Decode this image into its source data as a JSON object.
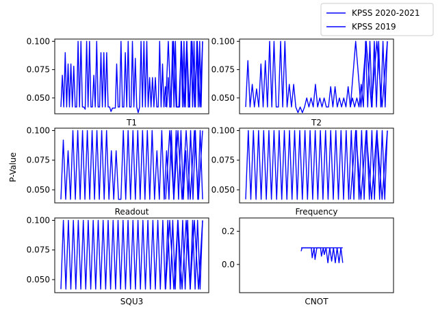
{
  "figure": {
    "ylabel": "P-Value",
    "line_color": "#0000ff",
    "legend": {
      "placement": "top-right (outside plots)",
      "entries": [
        "KPSS 2020-2021",
        "KPSS 2019"
      ]
    }
  },
  "chart_data": [
    {
      "type": "line",
      "name": "T1",
      "xlabel": "T1",
      "ylim": [
        0.036,
        0.102
      ],
      "yticks": [
        0.05,
        0.075,
        0.1
      ],
      "ytick_labels": [
        "0.050",
        "0.075",
        "0.100"
      ],
      "grid": false,
      "series": [
        {
          "name": "KPSS 2020-2021",
          "values": [
            0.042,
            0.07,
            0.042,
            0.09,
            0.042,
            0.08,
            0.042,
            0.08,
            0.042,
            0.078,
            0.042,
            0.042,
            0.1,
            0.042,
            0.1,
            0.042,
            0.042,
            0.04,
            0.1,
            0.042,
            0.1,
            0.042,
            0.042,
            0.07,
            0.042,
            0.1,
            0.042,
            0.042,
            0.09,
            0.042,
            0.09,
            0.042,
            0.09,
            0.042,
            0.042,
            0.038,
            0.041,
            0.041,
            0.041,
            0.08,
            0.042,
            0.042,
            0.1,
            0.042,
            0.042,
            0.09,
            0.042,
            0.1,
            0.042,
            0.042,
            0.1,
            0.042,
            0.085,
            0.042,
            0.037,
            0.042,
            0.1,
            0.042,
            0.1,
            0.042,
            0.1,
            0.042,
            0.068,
            0.042,
            0.068,
            0.042,
            0.068,
            0.042,
            0.042,
            0.1,
            0.042,
            0.08,
            0.042,
            0.06,
            0.042,
            0.068,
            0.042,
            0.042,
            0.1,
            0.042,
            0.1,
            0.042,
            0.042,
            0.042,
            0.1,
            0.042,
            0.1,
            0.042,
            0.1,
            0.042,
            0.042,
            0.1,
            0.042,
            0.1,
            0.042,
            0.1,
            0.042,
            0.1,
            0.042,
            0.1
          ]
        },
        {
          "name": "KPSS 2019",
          "values": [
            0.042,
            0.1,
            0.042,
            0.1,
            0.042,
            0.042,
            0.1,
            0.042,
            0.1,
            0.042,
            0.1,
            0.042,
            0.1,
            0.042,
            0.1
          ]
        }
      ]
    },
    {
      "type": "line",
      "name": "T2",
      "xlabel": "T2",
      "ylim": [
        0.036,
        0.102
      ],
      "yticks": [
        0.05,
        0.075,
        0.1
      ],
      "ytick_labels": [
        "0.050",
        "0.075",
        "0.100"
      ],
      "grid": false,
      "series": [
        {
          "name": "KPSS 2020-2021",
          "values": [
            0.042,
            0.083,
            0.042,
            0.062,
            0.042,
            0.058,
            0.042,
            0.08,
            0.042,
            0.083,
            0.042,
            0.1,
            0.042,
            0.1,
            0.042,
            0.042,
            0.1,
            0.042,
            0.1,
            0.042,
            0.062,
            0.042,
            0.062,
            0.042,
            0.037,
            0.042,
            0.037,
            0.042,
            0.05,
            0.042,
            0.05,
            0.042,
            0.062,
            0.042,
            0.05,
            0.042,
            0.05,
            0.042,
            0.042,
            0.06,
            0.042,
            0.06,
            0.042,
            0.05,
            0.042,
            0.05,
            0.042,
            0.06,
            0.042,
            0.05,
            0.042,
            0.05,
            0.042,
            0.062,
            0.042,
            0.1,
            0.042,
            0.1,
            0.042,
            0.1,
            0.042,
            0.1,
            0.042,
            0.1,
            0.042,
            0.1
          ]
        },
        {
          "name": "KPSS 2019",
          "values": [
            0.042,
            0.1,
            0.042,
            0.1,
            0.042,
            0.1,
            0.042,
            0.1
          ]
        }
      ]
    },
    {
      "type": "line",
      "name": "Readout",
      "xlabel": "Readout",
      "ylim": [
        0.039,
        0.102
      ],
      "yticks": [
        0.05,
        0.075,
        0.1
      ],
      "ytick_labels": [
        "0.050",
        "0.075",
        "0.100"
      ],
      "grid": false,
      "series": [
        {
          "name": "KPSS 2020-2021",
          "values": [
            0.042,
            0.092,
            0.042,
            0.083,
            0.042,
            0.1,
            0.042,
            0.1,
            0.042,
            0.1,
            0.042,
            0.1,
            0.042,
            0.1,
            0.042,
            0.1,
            0.042,
            0.1,
            0.042,
            0.1,
            0.042,
            0.083,
            0.042,
            0.083,
            0.042,
            0.042,
            0.1,
            0.042,
            0.1,
            0.042,
            0.1,
            0.042,
            0.1,
            0.042,
            0.1,
            0.042,
            0.1,
            0.042,
            0.1,
            0.042,
            0.083,
            0.042,
            0.1,
            0.042,
            0.083,
            0.042,
            0.1,
            0.042,
            0.1,
            0.042,
            0.1,
            0.042,
            0.083,
            0.042,
            0.1,
            0.042,
            0.1,
            0.042,
            0.1,
            0.042
          ]
        },
        {
          "name": "KPSS 2019",
          "values": [
            0.042,
            0.1,
            0.042,
            0.1,
            0.042,
            0.1,
            0.042,
            0.1,
            0.042,
            0.1
          ]
        }
      ]
    },
    {
      "type": "line",
      "name": "Frequency",
      "xlabel": "Frequency",
      "ylim": [
        0.039,
        0.102
      ],
      "yticks": [
        0.05,
        0.075,
        0.1
      ],
      "ytick_labels": [
        "0.050",
        "0.075",
        "0.100"
      ],
      "grid": false,
      "series": [
        {
          "name": "KPSS 2020-2021",
          "values": [
            0.042,
            0.1,
            0.042,
            0.1,
            0.042,
            0.1,
            0.042,
            0.1,
            0.042,
            0.1,
            0.042,
            0.1,
            0.042,
            0.1,
            0.042,
            0.1,
            0.042,
            0.1,
            0.042,
            0.1,
            0.042,
            0.1,
            0.042,
            0.1,
            0.042,
            0.1,
            0.042,
            0.1,
            0.042,
            0.1,
            0.042,
            0.1,
            0.042,
            0.1,
            0.042,
            0.1,
            0.042,
            0.1,
            0.042,
            0.1,
            0.042,
            0.1,
            0.042,
            0.1,
            0.042,
            0.1,
            0.042,
            0.1,
            0.042,
            0.1,
            0.042,
            0.1,
            0.042,
            0.1,
            0.042,
            0.1
          ]
        },
        {
          "name": "KPSS 2019",
          "values": [
            0.042,
            0.1,
            0.042,
            0.1,
            0.042,
            0.1,
            0.042,
            0.1
          ]
        }
      ]
    },
    {
      "type": "line",
      "name": "SQU3",
      "xlabel": "SQU3",
      "ylim": [
        0.039,
        0.102
      ],
      "yticks": [
        0.05,
        0.075,
        0.1
      ],
      "ytick_labels": [
        "0.050",
        "0.075",
        "0.100"
      ],
      "grid": false,
      "series": [
        {
          "name": "KPSS 2020-2021",
          "values": [
            0.042,
            0.1,
            0.042,
            0.1,
            0.042,
            0.1,
            0.042,
            0.1,
            0.042,
            0.1,
            0.042,
            0.1,
            0.042,
            0.1,
            0.042,
            0.1,
            0.042,
            0.1,
            0.042,
            0.1,
            0.042,
            0.1,
            0.042,
            0.1,
            0.042,
            0.1,
            0.042,
            0.1,
            0.042,
            0.1,
            0.042,
            0.1,
            0.042,
            0.1,
            0.042,
            0.1,
            0.042,
            0.1,
            0.042,
            0.1,
            0.042,
            0.1,
            0.042,
            0.1,
            0.042,
            0.1,
            0.042,
            0.1,
            0.042,
            0.1,
            0.042,
            0.1,
            0.042,
            0.1,
            0.042,
            0.1,
            0.042,
            0.1
          ]
        },
        {
          "name": "KPSS 2019",
          "values": [
            0.042,
            0.1,
            0.042,
            0.1,
            0.042,
            0.1,
            0.042,
            0.1,
            0.042,
            0.1
          ]
        }
      ]
    },
    {
      "type": "line",
      "name": "CNOT",
      "xlabel": "CNOT",
      "ylim": [
        -0.17,
        0.28
      ],
      "yticks": [
        0.0,
        0.2
      ],
      "ytick_labels": [
        "0.0",
        "0.2"
      ],
      "grid": false,
      "series": [
        {
          "name": "KPSS 2020-2021",
          "x": [
            0.0,
            0.01,
            0.11,
            0.12,
            0.14,
            0.15,
            0.17,
            0.19,
            0.21,
            0.22,
            0.24,
            0.25,
            0.27,
            0.29,
            0.31,
            0.33,
            0.35,
            0.37,
            0.39,
            0.41,
            0.43,
            0.45
          ],
          "values": [
            0.08,
            0.1,
            0.1,
            0.04,
            0.1,
            0.03,
            0.1,
            0.1,
            0.1,
            0.05,
            0.1,
            0.06,
            0.1,
            0.01,
            0.1,
            0.02,
            0.1,
            0.01,
            0.1,
            0.01,
            0.1,
            0.01
          ]
        },
        {
          "name": "KPSS 2019",
          "x": [
            0.0,
            0.45
          ],
          "values": [
            0.1,
            0.1
          ]
        }
      ]
    }
  ]
}
